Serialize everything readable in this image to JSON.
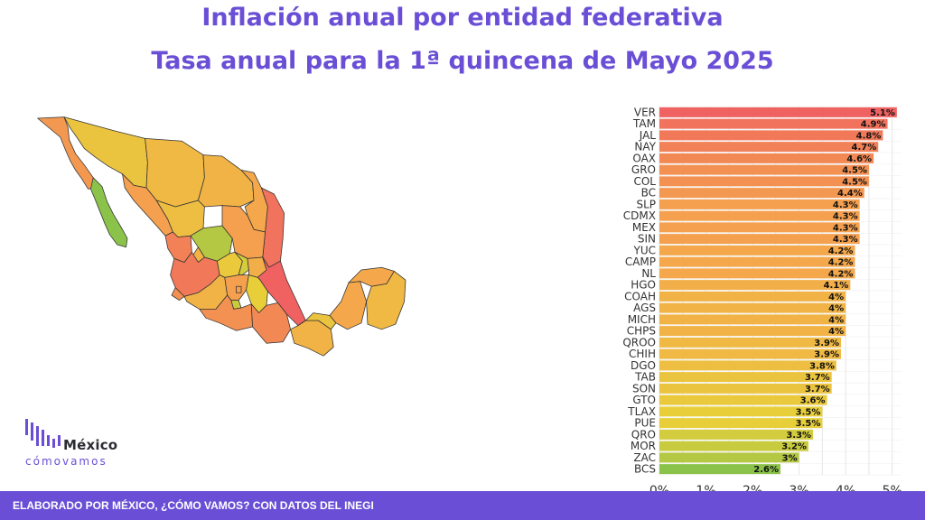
{
  "title": "Inflación anual por entidad federativa",
  "subtitle": "Tasa anual para la 1ª quincena de Mayo 2025",
  "footer": "ELABORADO POR MÉXICO, ¿CÓMO VAMOS? CON DATOS DEL INEGI",
  "logo": {
    "line1": "México",
    "line2": "cómovamos"
  },
  "colors": {
    "accent": "#6a4fd6",
    "low": "#8bc34a",
    "mid": "#e8c53a",
    "high": "#f06262"
  },
  "chart_data": {
    "type": "bar",
    "orientation": "horizontal",
    "categories": [
      "VER",
      "TAM",
      "JAL",
      "NAY",
      "OAX",
      "GRO",
      "COL",
      "BC",
      "SLP",
      "CDMX",
      "MEX",
      "SIN",
      "YUC",
      "CAMP",
      "NL",
      "HGO",
      "COAH",
      "AGS",
      "MICH",
      "CHPS",
      "QROO",
      "CHIH",
      "DGO",
      "TAB",
      "SON",
      "GTO",
      "TLAX",
      "PUE",
      "QRO",
      "MOR",
      "ZAC",
      "BCS"
    ],
    "values": [
      5.1,
      4.9,
      4.8,
      4.7,
      4.6,
      4.5,
      4.5,
      4.4,
      4.3,
      4.3,
      4.3,
      4.3,
      4.2,
      4.2,
      4.2,
      4.1,
      4.0,
      4.0,
      4.0,
      4.0,
      3.9,
      3.9,
      3.8,
      3.7,
      3.7,
      3.6,
      3.5,
      3.5,
      3.3,
      3.2,
      3.0,
      2.6
    ],
    "labels": [
      "5.1%",
      "4.9%",
      "4.8%",
      "4.7%",
      "4.6%",
      "4.5%",
      "4.5%",
      "4.4%",
      "4.3%",
      "4.3%",
      "4.3%",
      "4.3%",
      "4.2%",
      "4.2%",
      "4.2%",
      "4.1%",
      "4%",
      "4%",
      "4%",
      "4%",
      "3.9%",
      "3.9%",
      "3.8%",
      "3.7%",
      "3.7%",
      "3.6%",
      "3.5%",
      "3.5%",
      "3.3%",
      "3.2%",
      "3%",
      "2.6%"
    ],
    "xticks": [
      "0%",
      "1%",
      "2%",
      "3%",
      "4%",
      "5%"
    ],
    "xlim": [
      0,
      5.2
    ],
    "grid": true,
    "color_scale": "green-yellow-orange-red"
  },
  "map": {
    "type": "choropleth",
    "states": [
      {
        "id": "BC",
        "value": 4.4
      },
      {
        "id": "BCS",
        "value": 2.6
      },
      {
        "id": "SON",
        "value": 3.7
      },
      {
        "id": "CHIH",
        "value": 3.9
      },
      {
        "id": "COAH",
        "value": 4.0
      },
      {
        "id": "NL",
        "value": 4.2
      },
      {
        "id": "TAM",
        "value": 4.9
      },
      {
        "id": "SIN",
        "value": 4.3
      },
      {
        "id": "DGO",
        "value": 3.8
      },
      {
        "id": "ZAC",
        "value": 3.0
      },
      {
        "id": "SLP",
        "value": 4.3
      },
      {
        "id": "NAY",
        "value": 4.7
      },
      {
        "id": "AGS",
        "value": 4.0
      },
      {
        "id": "JAL",
        "value": 4.8
      },
      {
        "id": "GTO",
        "value": 3.6
      },
      {
        "id": "QRO",
        "value": 3.3
      },
      {
        "id": "HGO",
        "value": 4.1
      },
      {
        "id": "VER",
        "value": 5.1
      },
      {
        "id": "COL",
        "value": 4.5
      },
      {
        "id": "MICH",
        "value": 4.0
      },
      {
        "id": "MEX",
        "value": 4.3
      },
      {
        "id": "CDMX",
        "value": 4.3
      },
      {
        "id": "TLAX",
        "value": 3.5
      },
      {
        "id": "PUE",
        "value": 3.5
      },
      {
        "id": "MOR",
        "value": 3.2
      },
      {
        "id": "GRO",
        "value": 4.5
      },
      {
        "id": "OAX",
        "value": 4.6
      },
      {
        "id": "CHPS",
        "value": 4.0
      },
      {
        "id": "TAB",
        "value": 3.7
      },
      {
        "id": "CAMP",
        "value": 4.2
      },
      {
        "id": "YUC",
        "value": 4.2
      },
      {
        "id": "QROO",
        "value": 3.9
      }
    ]
  }
}
